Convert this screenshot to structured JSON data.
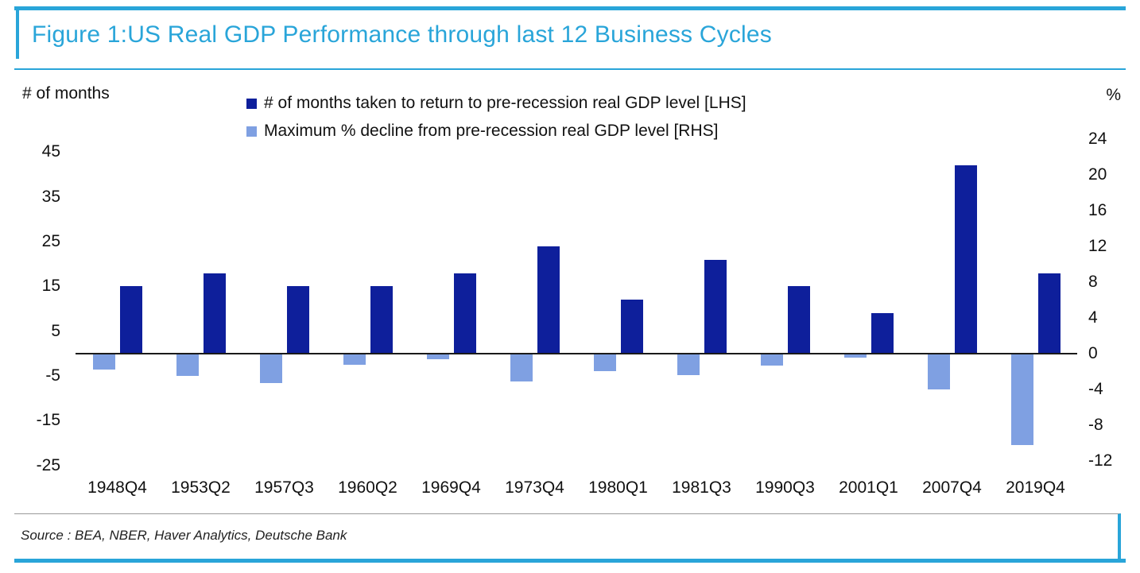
{
  "figure": {
    "title": "Figure 1:US Real GDP Performance through last 12 Business Cycles",
    "source": "Source : BEA, NBER, Haver Analytics, Deutsche Bank",
    "accent_color": "#29a5d9"
  },
  "chart_data": {
    "type": "bar",
    "title": "US Real GDP Performance through last 12 Business Cycles",
    "categories": [
      "1948Q4",
      "1953Q2",
      "1957Q3",
      "1960Q2",
      "1969Q4",
      "1973Q4",
      "1980Q1",
      "1981Q3",
      "1990Q3",
      "2001Q1",
      "2007Q4",
      "2019Q4"
    ],
    "series": [
      {
        "name": "# of months taken to return to pre-recession real GDP level [LHS]",
        "axis": "left",
        "color": "#0e1f9b",
        "values": [
          15,
          18,
          15,
          15,
          18,
          24,
          12,
          21,
          15,
          9,
          42,
          18
        ]
      },
      {
        "name": "Maximum % decline from pre-recession real GDP level [RHS]",
        "axis": "right",
        "color": "#7fa0e2",
        "values": [
          -1.8,
          -2.5,
          -3.3,
          -1.2,
          -0.6,
          -3.1,
          -1.9,
          -2.4,
          -1.3,
          -0.4,
          -4.0,
          -10.2
        ]
      }
    ],
    "left_axis": {
      "label": "# of months",
      "ticks": [
        45,
        35,
        25,
        15,
        5,
        -5,
        -15,
        -25
      ],
      "range": [
        -26.8,
        49.5
      ]
    },
    "right_axis": {
      "label": "%",
      "ticks": [
        24,
        20,
        16,
        12,
        8,
        4,
        0,
        -4,
        -8,
        -12
      ],
      "range": [
        -13.4,
        24.8
      ]
    },
    "legend_position": "top",
    "grid": false
  }
}
